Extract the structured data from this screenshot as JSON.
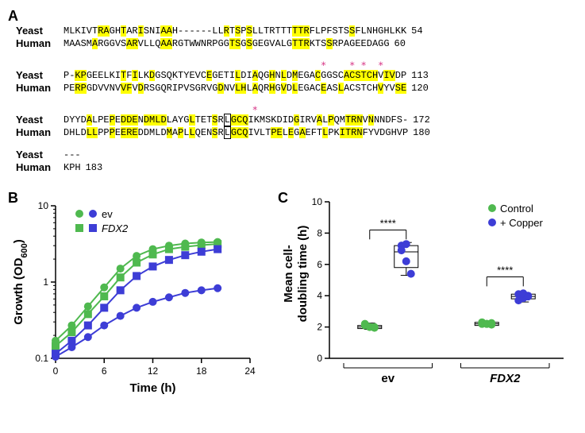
{
  "panelA": {
    "label": "A",
    "rows": [
      {
        "name": "Yeast",
        "num": "54",
        "seq": [
          [
            "MLKIVT",
            "0"
          ],
          [
            "RA",
            "1"
          ],
          [
            "GH",
            "0"
          ],
          [
            "T",
            "1"
          ],
          [
            "AR",
            "0"
          ],
          [
            "I",
            "1"
          ],
          [
            "SNI",
            "0"
          ],
          [
            "AA",
            "1"
          ],
          [
            "H------LL",
            "0"
          ],
          [
            "R",
            "1"
          ],
          [
            "T",
            "0"
          ],
          [
            "S",
            "1"
          ],
          [
            "P",
            "0"
          ],
          [
            "S",
            "1"
          ],
          [
            "LLTRTTT",
            "0"
          ],
          [
            "TTR",
            "1"
          ],
          [
            "FLPFSTS",
            "0"
          ],
          [
            "S",
            "1"
          ],
          [
            "FLNHGHLKK",
            "0"
          ]
        ]
      },
      {
        "name": "Human",
        "num": "60",
        "seq": [
          [
            "MAASM",
            "0"
          ],
          [
            "A",
            "1"
          ],
          [
            "RGGVS",
            "0"
          ],
          [
            "AR",
            "1"
          ],
          [
            "VLLQ",
            "0"
          ],
          [
            "AA",
            "1"
          ],
          [
            "RGTWWNRPGG",
            "0"
          ],
          [
            "TS",
            "1"
          ],
          [
            "G",
            "0"
          ],
          [
            "S",
            "1"
          ],
          [
            "GEGVALG",
            "0"
          ],
          [
            "TTR",
            "1"
          ],
          [
            "KTS",
            "0"
          ],
          [
            "S",
            "1"
          ],
          [
            "RPAGEEDAGG",
            "0"
          ]
        ]
      }
    ],
    "asterisks1": "                                             *    * *  *",
    "rows2": [
      {
        "name": "Yeast",
        "num": "113",
        "seq": [
          [
            "P-",
            "0"
          ],
          [
            "KP",
            "1"
          ],
          [
            "GEELKI",
            "0"
          ],
          [
            "T",
            "1"
          ],
          [
            "F",
            "0"
          ],
          [
            "I",
            "1"
          ],
          [
            "LK",
            "0"
          ],
          [
            "D",
            "1"
          ],
          [
            "GSQKTYEVC",
            "0"
          ],
          [
            "E",
            "1"
          ],
          [
            "GETI",
            "0"
          ],
          [
            "L",
            "1"
          ],
          [
            "DI",
            "0"
          ],
          [
            "A",
            "1"
          ],
          [
            "QG",
            "0"
          ],
          [
            "H",
            "1"
          ],
          [
            "N",
            "0"
          ],
          [
            "L",
            "1"
          ],
          [
            "D",
            "0"
          ],
          [
            "M",
            "1"
          ],
          [
            "EGA",
            "0"
          ],
          [
            "C",
            "1"
          ],
          [
            "GGSC",
            "0"
          ],
          [
            "ACSTCH",
            "1"
          ],
          [
            "V",
            "0"
          ],
          [
            "IV",
            "1"
          ],
          [
            "DP",
            "0"
          ]
        ]
      },
      {
        "name": "Human",
        "num": "120",
        "seq": [
          [
            "PE",
            "0"
          ],
          [
            "RP",
            "1"
          ],
          [
            "GDVVNV",
            "0"
          ],
          [
            "VF",
            "1"
          ],
          [
            "V",
            "0"
          ],
          [
            "D",
            "1"
          ],
          [
            "RSGQRIPVSGRVG",
            "0"
          ],
          [
            "D",
            "1"
          ],
          [
            "NV",
            "0"
          ],
          [
            "LH",
            "1"
          ],
          [
            "L",
            "0"
          ],
          [
            "A",
            "1"
          ],
          [
            "QR",
            "0"
          ],
          [
            "H",
            "1"
          ],
          [
            "G",
            "0"
          ],
          [
            "V",
            "1"
          ],
          [
            "D",
            "0"
          ],
          [
            "L",
            "1"
          ],
          [
            "EGAC",
            "0"
          ],
          [
            "E",
            "1"
          ],
          [
            "AS",
            "0"
          ],
          [
            "L",
            "1"
          ],
          [
            "ACSTCH",
            "0"
          ],
          [
            "V",
            "1"
          ],
          [
            "YV",
            "0"
          ],
          [
            "SE",
            "1"
          ]
        ]
      }
    ],
    "asterisks2": "                                 *",
    "rows3": [
      {
        "name": "Yeast",
        "num": "172",
        "seq": [
          [
            "DYYD",
            "0"
          ],
          [
            "A",
            "1"
          ],
          [
            "LPE",
            "0"
          ],
          [
            "P",
            "1"
          ],
          [
            "E",
            "0"
          ],
          [
            "DDE",
            "1"
          ],
          [
            "N",
            "0"
          ],
          [
            "DMLD",
            "1"
          ],
          [
            "LAYG",
            "0"
          ],
          [
            "L",
            "1"
          ],
          [
            "TET",
            "0"
          ],
          [
            "S",
            "1"
          ],
          [
            "R",
            "0"
          ],
          [
            "L",
            "B"
          ],
          [
            "GCQ",
            "1"
          ],
          [
            "IKMSKDID",
            "0"
          ],
          [
            "G",
            "1"
          ],
          [
            "IRV",
            "0"
          ],
          [
            "A",
            "1"
          ],
          [
            "L",
            "0"
          ],
          [
            "P",
            "1"
          ],
          [
            "QM",
            "0"
          ],
          [
            "TRN",
            "1"
          ],
          [
            "V",
            "0"
          ],
          [
            "N",
            "1"
          ],
          [
            "NNDFS-",
            "0"
          ]
        ]
      },
      {
        "name": "Human",
        "num": "180",
        "seq": [
          [
            "DHLD",
            "0"
          ],
          [
            "LL",
            "1"
          ],
          [
            "PP",
            "0"
          ],
          [
            "P",
            "1"
          ],
          [
            "E",
            "0"
          ],
          [
            "ERE",
            "1"
          ],
          [
            "DDMLD",
            "0"
          ],
          [
            "M",
            "1"
          ],
          [
            "A",
            "0"
          ],
          [
            "P",
            "1"
          ],
          [
            "L",
            "0"
          ],
          [
            "L",
            "1"
          ],
          [
            "QEN",
            "0"
          ],
          [
            "S",
            "1"
          ],
          [
            "R",
            "0"
          ],
          [
            "L",
            "B"
          ],
          [
            "GCQ",
            "1"
          ],
          [
            "IVLT",
            "0"
          ],
          [
            "PE",
            "1"
          ],
          [
            "L",
            "0"
          ],
          [
            "E",
            "1"
          ],
          [
            "G",
            "0"
          ],
          [
            "A",
            "1"
          ],
          [
            "EFT",
            "0"
          ],
          [
            "L",
            "1"
          ],
          [
            "PK",
            "0"
          ],
          [
            "ITRN",
            "1"
          ],
          [
            "FYVDGHVP",
            "0"
          ]
        ]
      }
    ],
    "rows4": [
      {
        "name": "Yeast",
        "num": "",
        "seq": [
          [
            "---",
            "0"
          ]
        ]
      },
      {
        "name": "Human",
        "num": "183",
        "seq": [
          [
            "KPH",
            "0"
          ]
        ]
      }
    ]
  },
  "panelB": {
    "label": "B",
    "type": "line",
    "xlabel": "Time (h)",
    "ylabel": "Growth (OD",
    "ylabel_sub": "600",
    "ylabel_close": ")",
    "xlim": [
      0,
      24
    ],
    "ylim": [
      0.1,
      10
    ],
    "yscale": "log",
    "xtick_step": 6,
    "yticks": [
      0.1,
      1,
      10
    ],
    "marker_size": 5,
    "line_width": 2,
    "series": [
      {
        "label": "ev",
        "color": "#4fb94f",
        "marker": "circle",
        "x": [
          0,
          2,
          4,
          6,
          8,
          10,
          12,
          14,
          16,
          18,
          20
        ],
        "y": [
          0.17,
          0.27,
          0.48,
          0.85,
          1.5,
          2.2,
          2.7,
          3.0,
          3.2,
          3.3,
          3.35
        ]
      },
      {
        "label": "FDX2",
        "color": "#4fb94f",
        "marker": "square",
        "x": [
          0,
          2,
          4,
          6,
          8,
          10,
          12,
          14,
          16,
          18,
          20
        ],
        "y": [
          0.145,
          0.22,
          0.38,
          0.65,
          1.15,
          1.8,
          2.3,
          2.7,
          2.9,
          3.05,
          3.15
        ]
      },
      {
        "label": "ev",
        "color": "#3d3dd6",
        "marker": "circle",
        "x": [
          0,
          2,
          4,
          6,
          8,
          10,
          12,
          14,
          16,
          18,
          20
        ],
        "y": [
          0.105,
          0.14,
          0.19,
          0.27,
          0.36,
          0.46,
          0.55,
          0.63,
          0.72,
          0.78,
          0.83
        ]
      },
      {
        "label": "FDX2",
        "color": "#3d3dd6",
        "marker": "square",
        "x": [
          0,
          2,
          4,
          6,
          8,
          10,
          12,
          14,
          16,
          18,
          20
        ],
        "y": [
          0.115,
          0.17,
          0.27,
          0.46,
          0.78,
          1.2,
          1.6,
          1.95,
          2.25,
          2.5,
          2.7
        ]
      }
    ],
    "legend": [
      {
        "label": "ev",
        "color_left": "#4fb94f",
        "marker_left": "circle",
        "color_right": "#3d3dd6",
        "marker_right": "circle",
        "italic": false
      },
      {
        "label": "FDX2",
        "color_left": "#4fb94f",
        "marker_left": "square",
        "color_right": "#3d3dd6",
        "marker_right": "square",
        "italic": true
      }
    ]
  },
  "panelC": {
    "label": "C",
    "type": "boxplot",
    "ylabel_line1": "Mean cell-",
    "ylabel_line2": "doubling time (h)",
    "ylim": [
      0,
      10
    ],
    "ytick_step": 2,
    "groups": [
      "ev",
      "FDX2"
    ],
    "group_italic": [
      false,
      true
    ],
    "legend": [
      {
        "label": "Control",
        "color": "#4fb94f",
        "marker": "circle"
      },
      {
        "label": "+ Copper",
        "color": "#3d3dd6",
        "marker": "circle"
      }
    ],
    "sig_label": "****",
    "boxes": [
      {
        "group": 0,
        "cond": 0,
        "color": "#4fb94f",
        "q1": 1.9,
        "med": 2.0,
        "q3": 2.1,
        "lo": 1.85,
        "hi": 2.25,
        "points": [
          2.2,
          2.0,
          1.95,
          2.1,
          2.0,
          2.0
        ]
      },
      {
        "group": 0,
        "cond": 1,
        "color": "#3d3dd6",
        "q1": 5.8,
        "med": 6.8,
        "q3": 7.2,
        "lo": 5.3,
        "hi": 7.4,
        "points": [
          7.2,
          6.2,
          5.4,
          6.9,
          7.3
        ]
      },
      {
        "group": 1,
        "cond": 0,
        "color": "#4fb94f",
        "q1": 2.1,
        "med": 2.2,
        "q3": 2.3,
        "lo": 2.05,
        "hi": 2.35,
        "points": [
          2.2,
          2.2,
          2.15,
          2.3,
          2.2,
          2.25
        ]
      },
      {
        "group": 1,
        "cond": 1,
        "color": "#3d3dd6",
        "q1": 3.8,
        "med": 3.95,
        "q3": 4.1,
        "lo": 3.6,
        "hi": 4.2,
        "points": [
          3.7,
          3.85,
          4.0,
          4.1,
          4.15,
          3.95
        ]
      }
    ]
  },
  "colors": {
    "axis": "#000000",
    "bg": "#ffffff"
  }
}
